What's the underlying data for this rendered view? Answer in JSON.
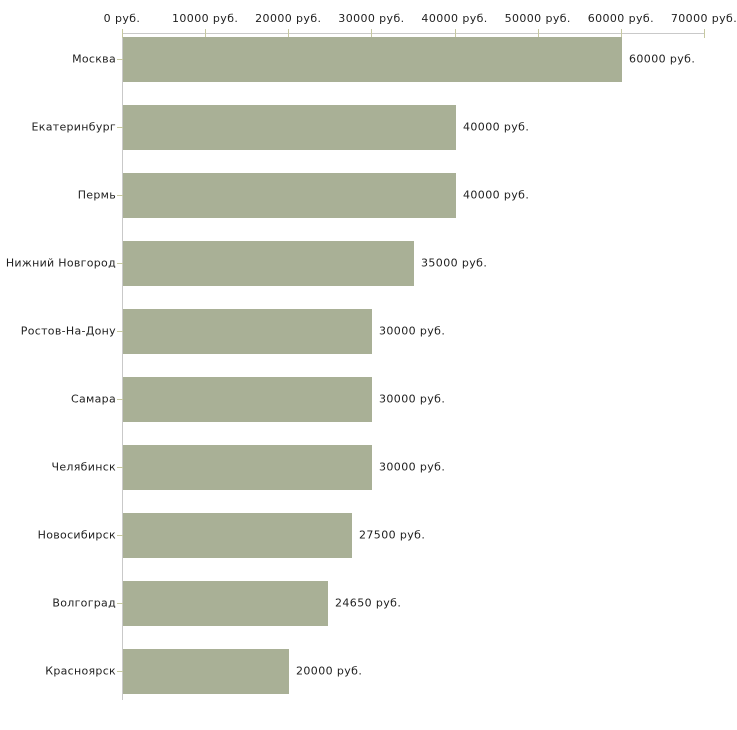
{
  "chart_data": {
    "type": "bar",
    "orientation": "horizontal",
    "categories": [
      "Москва",
      "Екатеринбург",
      "Пермь",
      "Нижний Новгород",
      "Ростов-На-Дону",
      "Самара",
      "Челябинск",
      "Новосибирск",
      "Волгоград",
      "Красноярск"
    ],
    "values": [
      60000,
      40000,
      40000,
      35000,
      30000,
      30000,
      30000,
      27500,
      24650,
      20000
    ],
    "value_labels": [
      "60000 руб.",
      "40000 руб.",
      "40000 руб.",
      "35000 руб.",
      "30000 руб.",
      "30000 руб.",
      "30000 руб.",
      "27500 руб.",
      "24650 руб.",
      "20000 руб."
    ],
    "title": "",
    "xlabel": "",
    "ylabel": "",
    "unit": "руб.",
    "xlim": [
      0,
      70000
    ],
    "x_ticks": [
      0,
      10000,
      20000,
      30000,
      40000,
      50000,
      60000,
      70000
    ],
    "x_tick_labels": [
      "0 руб.",
      "10000 руб.",
      "20000 руб.",
      "30000 руб.",
      "40000 руб.",
      "50000 руб.",
      "60000 руб.",
      "70000 руб."
    ],
    "grid": "off",
    "legend": "none",
    "axis_position": "top",
    "colors": {
      "bar": "#a9b096",
      "tick_mark": "#c6c8a0",
      "axis_line": "#c9c9c9",
      "text": "#1f1f1f",
      "background": "#ffffff"
    }
  }
}
